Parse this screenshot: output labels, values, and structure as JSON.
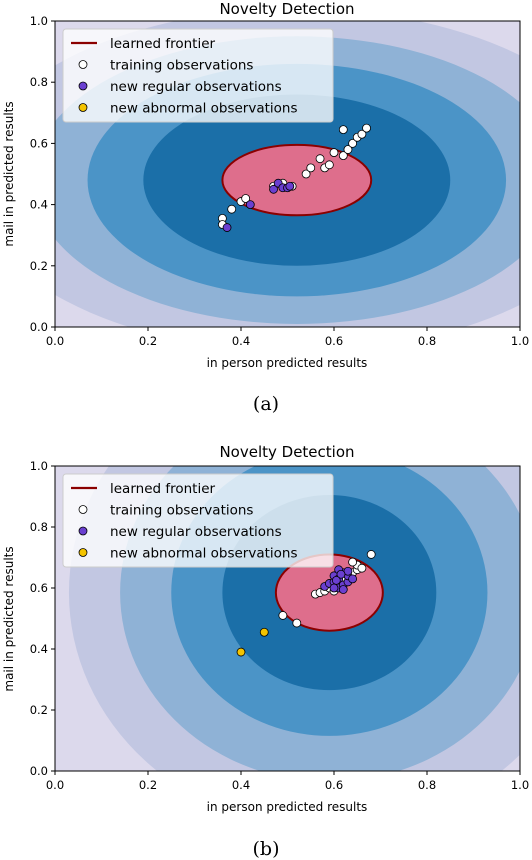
{
  "colors": {
    "contour_levels": [
      "#dcd9ec",
      "#c2c7e2",
      "#8fb2d6",
      "#4b94c7",
      "#1b6fa8",
      "#054f7e"
    ],
    "frontier_line": "#8b0000",
    "frontier_fill": "#de6e8c",
    "training": "#ffffff",
    "regular": "#6a3fd0",
    "abnormal": "#f5c400"
  },
  "chart_data": [
    {
      "type": "scatter",
      "panel": "(a)",
      "title": "Novelty Detection",
      "xlabel": "in person predicted results",
      "ylabel": "mail in predicted results",
      "xlim": [
        0.0,
        1.0
      ],
      "ylim": [
        0.0,
        1.0
      ],
      "xticks": [
        "0.0",
        "0.2",
        "0.4",
        "0.6",
        "0.8",
        "1.0"
      ],
      "yticks": [
        "0.0",
        "0.2",
        "0.4",
        "0.6",
        "0.8",
        "1.0"
      ],
      "legend_position": "top-left",
      "frontier": {
        "center": [
          0.52,
          0.48
        ],
        "semi_axes": [
          0.16,
          0.115
        ]
      },
      "contours": {
        "center": [
          0.52,
          0.48
        ],
        "semi_axes": [
          [
            0.7,
            0.56
          ],
          [
            0.57,
            0.47
          ],
          [
            0.45,
            0.38
          ],
          [
            0.33,
            0.28
          ]
        ]
      },
      "series": [
        {
          "name": "learned frontier",
          "kind": "line"
        },
        {
          "name": "training observations",
          "kind": "points",
          "points": [
            [
              0.36,
              0.355
            ],
            [
              0.36,
              0.335
            ],
            [
              0.38,
              0.385
            ],
            [
              0.4,
              0.41
            ],
            [
              0.41,
              0.42
            ],
            [
              0.47,
              0.46
            ],
            [
              0.49,
              0.47
            ],
            [
              0.51,
              0.46
            ],
            [
              0.54,
              0.5
            ],
            [
              0.55,
              0.52
            ],
            [
              0.57,
              0.55
            ],
            [
              0.58,
              0.52
            ],
            [
              0.59,
              0.53
            ],
            [
              0.6,
              0.57
            ],
            [
              0.62,
              0.56
            ],
            [
              0.63,
              0.58
            ],
            [
              0.64,
              0.6
            ],
            [
              0.65,
              0.62
            ],
            [
              0.66,
              0.63
            ],
            [
              0.67,
              0.65
            ],
            [
              0.62,
              0.645
            ]
          ]
        },
        {
          "name": "new regular observations",
          "kind": "points",
          "points": [
            [
              0.37,
              0.325
            ],
            [
              0.42,
              0.4
            ],
            [
              0.47,
              0.45
            ],
            [
              0.48,
              0.47
            ],
            [
              0.49,
              0.455
            ],
            [
              0.5,
              0.455
            ],
            [
              0.505,
              0.46
            ]
          ]
        },
        {
          "name": "new abnormal observations",
          "kind": "points",
          "points": []
        }
      ]
    },
    {
      "type": "scatter",
      "panel": "(b)",
      "title": "Novelty Detection",
      "xlabel": "in person predicted results",
      "ylabel": "mail in predicted results",
      "xlim": [
        0.0,
        1.0
      ],
      "ylim": [
        0.0,
        1.0
      ],
      "xticks": [
        "0.0",
        "0.2",
        "0.4",
        "0.6",
        "0.8",
        "1.0"
      ],
      "yticks": [
        "0.0",
        "0.2",
        "0.4",
        "0.6",
        "0.8",
        "1.0"
      ],
      "legend_position": "top-left",
      "frontier": {
        "center": [
          0.59,
          0.585
        ],
        "semi_axes": [
          0.115,
          0.125
        ]
      },
      "contours": {
        "center": [
          0.59,
          0.585
        ],
        "semi_axes": [
          [
            0.56,
            0.78
          ],
          [
            0.45,
            0.62
          ],
          [
            0.34,
            0.47
          ],
          [
            0.23,
            0.32
          ]
        ]
      },
      "series": [
        {
          "name": "learned frontier",
          "kind": "line"
        },
        {
          "name": "training observations",
          "kind": "points",
          "points": [
            [
              0.49,
              0.51
            ],
            [
              0.52,
              0.485
            ],
            [
              0.56,
              0.58
            ],
            [
              0.57,
              0.585
            ],
            [
              0.58,
              0.59
            ],
            [
              0.59,
              0.6
            ],
            [
              0.6,
              0.61
            ],
            [
              0.61,
              0.62
            ],
            [
              0.62,
              0.63
            ],
            [
              0.63,
              0.64
            ],
            [
              0.64,
              0.65
            ],
            [
              0.65,
              0.66
            ],
            [
              0.65,
              0.675
            ],
            [
              0.64,
              0.685
            ],
            [
              0.68,
              0.71
            ],
            [
              0.6,
              0.59
            ],
            [
              0.66,
              0.665
            ]
          ]
        },
        {
          "name": "new regular observations",
          "kind": "points",
          "points": [
            [
              0.58,
              0.605
            ],
            [
              0.59,
              0.615
            ],
            [
              0.6,
              0.62
            ],
            [
              0.6,
              0.64
            ],
            [
              0.61,
              0.6
            ],
            [
              0.61,
              0.63
            ],
            [
              0.62,
              0.61
            ],
            [
              0.62,
              0.65
            ],
            [
              0.63,
              0.62
            ],
            [
              0.63,
              0.64
            ],
            [
              0.61,
              0.66
            ],
            [
              0.64,
              0.63
            ],
            [
              0.62,
              0.595
            ],
            [
              0.6,
              0.6
            ],
            [
              0.63,
              0.655
            ],
            [
              0.615,
              0.645
            ],
            [
              0.605,
              0.625
            ]
          ]
        },
        {
          "name": "new abnormal observations",
          "kind": "points",
          "points": [
            [
              0.4,
              0.39
            ],
            [
              0.45,
              0.455
            ]
          ]
        }
      ]
    }
  ],
  "captions": [
    "(a)",
    "(b)"
  ]
}
